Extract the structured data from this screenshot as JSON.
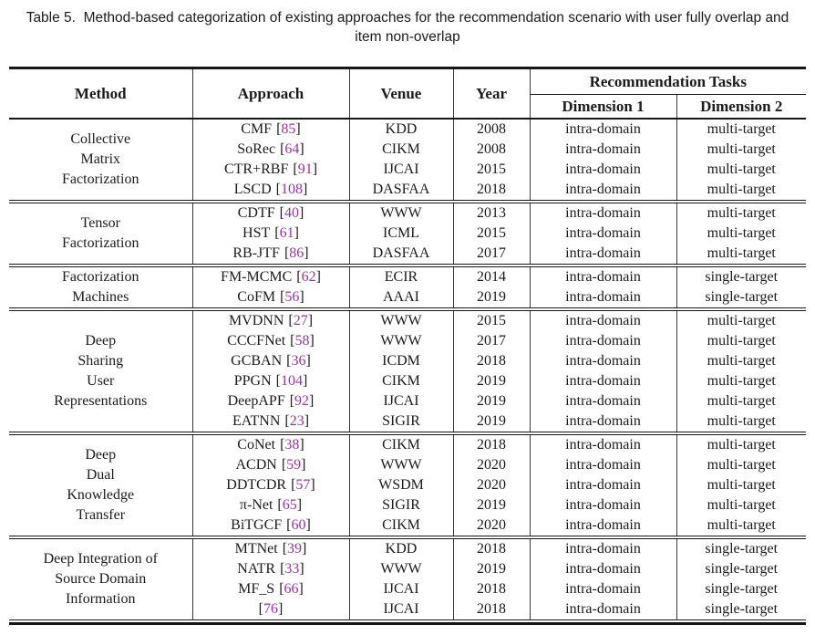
{
  "colors": {
    "text": "#1b1b1b",
    "rule": "#161616",
    "column_line": "#3a3a3a",
    "citation": "#9933a3",
    "background": "#ffffff"
  },
  "caption": {
    "line1": "Table 5.  Method-based categorization of existing approaches for the recommendation scenario with user fully overlap and",
    "line2": "item non-overlap"
  },
  "punctuation": {
    "bracket_open": "[",
    "bracket_close": "]"
  },
  "header": {
    "method": "Method",
    "approach": "Approach",
    "venue": "Venue",
    "year": "Year",
    "tasks": "Recommendation Tasks",
    "dim1": "Dimension 1",
    "dim2": "Dimension 2"
  },
  "groups": [
    {
      "method_lines": [
        "Collective",
        "Matrix",
        "Factorization"
      ],
      "rows": [
        {
          "approach_name": "CMF",
          "citation": "85",
          "venue": "KDD",
          "year": "2008",
          "dim1": "intra-domain",
          "dim2": "multi-target"
        },
        {
          "approach_name": "SoRec",
          "citation": "64",
          "venue": "CIKM",
          "year": "2008",
          "dim1": "intra-domain",
          "dim2": "multi-target"
        },
        {
          "approach_name": "CTR+RBF",
          "citation": "91",
          "venue": "IJCAI",
          "year": "2015",
          "dim1": "intra-domain",
          "dim2": "multi-target"
        },
        {
          "approach_name": "LSCD",
          "citation": "108",
          "venue": "DASFAA",
          "year": "2018",
          "dim1": "intra-domain",
          "dim2": "multi-target"
        }
      ]
    },
    {
      "method_lines": [
        "Tensor",
        "Factorization"
      ],
      "rows": [
        {
          "approach_name": "CDTF",
          "citation": "40",
          "venue": "WWW",
          "year": "2013",
          "dim1": "intra-domain",
          "dim2": "multi-target"
        },
        {
          "approach_name": "HST",
          "citation": "61",
          "venue": "ICML",
          "year": "2015",
          "dim1": "intra-domain",
          "dim2": "multi-target"
        },
        {
          "approach_name": "RB-JTF",
          "citation": "86",
          "venue": "DASFAA",
          "year": "2017",
          "dim1": "intra-domain",
          "dim2": "multi-target"
        }
      ]
    },
    {
      "method_lines": [
        "Factorization",
        "Machines"
      ],
      "rows": [
        {
          "approach_name": "FM-MCMC",
          "citation": "62",
          "venue": "ECIR",
          "year": "2014",
          "dim1": "intra-domain",
          "dim2": "single-target"
        },
        {
          "approach_name": "CoFM",
          "citation": "56",
          "venue": "AAAI",
          "year": "2019",
          "dim1": "intra-domain",
          "dim2": "single-target"
        }
      ]
    },
    {
      "method_lines": [
        "Deep",
        "Sharing",
        "User",
        "Representations"
      ],
      "rows": [
        {
          "approach_name": "MVDNN",
          "citation": "27",
          "venue": "WWW",
          "year": "2015",
          "dim1": "intra-domain",
          "dim2": "multi-target"
        },
        {
          "approach_name": "CCCFNet",
          "citation": "58",
          "venue": "WWW",
          "year": "2017",
          "dim1": "intra-domain",
          "dim2": "multi-target"
        },
        {
          "approach_name": "GCBAN",
          "citation": "36",
          "venue": "ICDM",
          "year": "2018",
          "dim1": "intra-domain",
          "dim2": "multi-target"
        },
        {
          "approach_name": "PPGN",
          "citation": "104",
          "venue": "CIKM",
          "year": "2019",
          "dim1": "intra-domain",
          "dim2": "multi-target"
        },
        {
          "approach_name": "DeepAPF",
          "citation": "92",
          "venue": "IJCAI",
          "year": "2019",
          "dim1": "intra-domain",
          "dim2": "multi-target"
        },
        {
          "approach_name": "EATNN",
          "citation": "23",
          "venue": "SIGIR",
          "year": "2019",
          "dim1": "intra-domain",
          "dim2": "multi-target"
        }
      ]
    },
    {
      "method_lines": [
        "Deep",
        "Dual",
        "Knowledge",
        "Transfer"
      ],
      "rows": [
        {
          "approach_name": "CoNet",
          "citation": "38",
          "venue": "CIKM",
          "year": "2018",
          "dim1": "intra-domain",
          "dim2": "multi-target"
        },
        {
          "approach_name": "ACDN",
          "citation": "59",
          "venue": "WWW",
          "year": "2020",
          "dim1": "intra-domain",
          "dim2": "multi-target"
        },
        {
          "approach_name": "DDTCDR",
          "citation": "57",
          "venue": "WSDM",
          "year": "2020",
          "dim1": "intra-domain",
          "dim2": "multi-target"
        },
        {
          "approach_name": "π-Net",
          "citation": "65",
          "venue": "SIGIR",
          "year": "2019",
          "dim1": "intra-domain",
          "dim2": "multi-target"
        },
        {
          "approach_name": "BiTGCF",
          "citation": "60",
          "venue": "CIKM",
          "year": "2020",
          "dim1": "intra-domain",
          "dim2": "multi-target"
        }
      ]
    },
    {
      "method_lines": [
        "Deep Integration of",
        "Source Domain",
        "Information"
      ],
      "rows": [
        {
          "approach_name": "MTNet",
          "citation": "39",
          "venue": "KDD",
          "year": "2018",
          "dim1": "intra-domain",
          "dim2": "single-target"
        },
        {
          "approach_name": "NATR",
          "citation": "33",
          "venue": "WWW",
          "year": "2019",
          "dim1": "intra-domain",
          "dim2": "single-target"
        },
        {
          "approach_name": "MF_S",
          "citation": "66",
          "venue": "IJCAI",
          "year": "2018",
          "dim1": "intra-domain",
          "dim2": "single-target"
        },
        {
          "approach_name": "",
          "citation": "76",
          "venue": "IJCAI",
          "year": "2018",
          "dim1": "intra-domain",
          "dim2": "single-target"
        }
      ]
    }
  ]
}
